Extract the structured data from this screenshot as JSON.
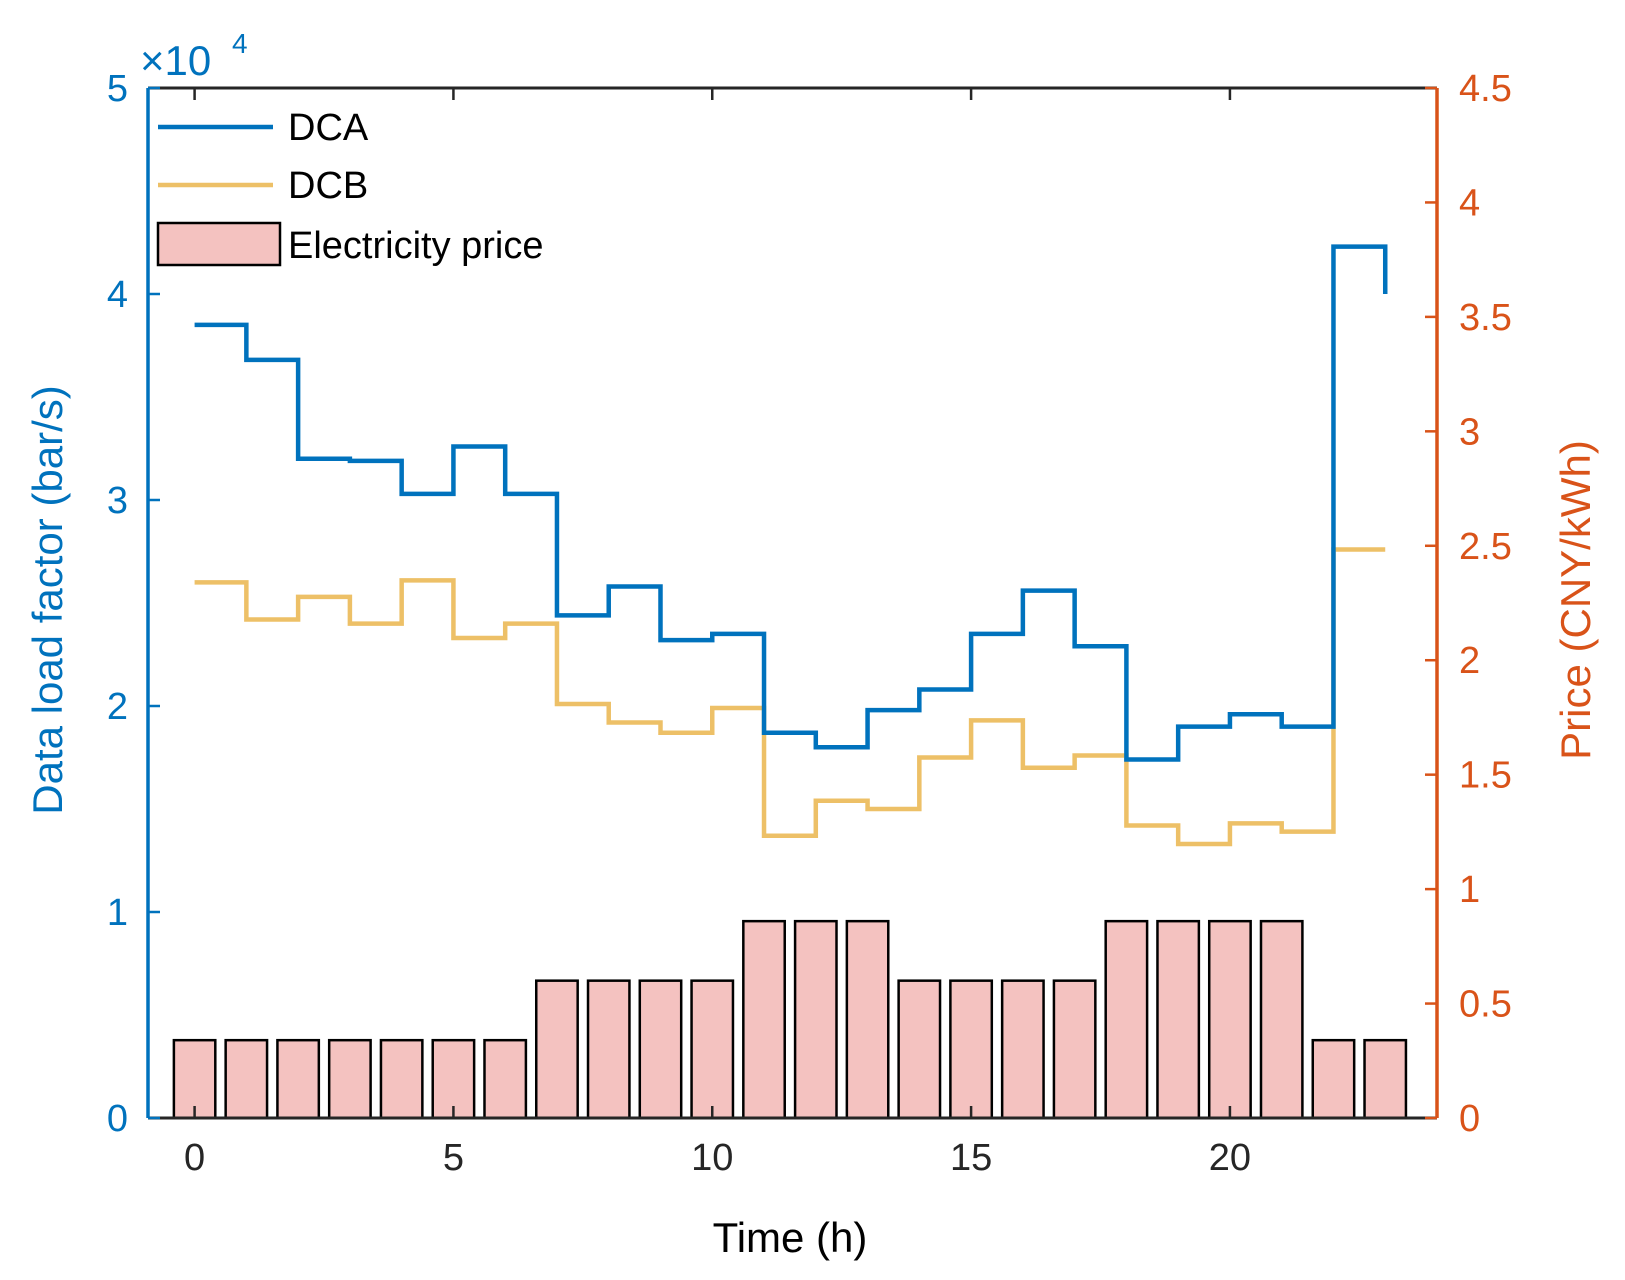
{
  "chart_data": {
    "type": "bar+line",
    "title": "",
    "xlabel": "Time (h)",
    "ylabel_left": "Data load factor (bar/s)",
    "ylabel_right": "Price (CNY/kWh)",
    "exponent_label": "×10",
    "exponent_power": "4",
    "x_ticks": [
      "0",
      "5",
      "10",
      "15",
      "20"
    ],
    "x_tick_values": [
      0,
      5,
      10,
      15,
      20
    ],
    "y_left_ticks": [
      "0",
      "1",
      "2",
      "3",
      "4",
      "5"
    ],
    "y_left_tick_values": [
      0,
      10000,
      20000,
      30000,
      40000,
      50000
    ],
    "y_right_ticks": [
      "0",
      "0.5",
      "1",
      "1.5",
      "2",
      "2.5",
      "3",
      "3.5",
      "4",
      "4.5"
    ],
    "y_right_tick_values": [
      0,
      0.5,
      1,
      1.5,
      2,
      2.5,
      3,
      3.5,
      4,
      4.5
    ],
    "xlim": [
      -0.9,
      24.0
    ],
    "ylim_left": [
      0,
      50000
    ],
    "ylim_right": [
      0,
      4.5
    ],
    "legend_position": "top-left",
    "colors": {
      "left_axis": "#0072BD",
      "right_axis": "#D95319",
      "dca": "#0072BD",
      "dcb": "#EDC067",
      "bar_fill": "#F4C2C0",
      "bar_edge": "#000000"
    },
    "x": [
      0,
      1,
      2,
      3,
      4,
      5,
      6,
      7,
      8,
      9,
      10,
      11,
      12,
      13,
      14,
      15,
      16,
      17,
      18,
      19,
      20,
      21,
      22,
      23
    ],
    "series": [
      {
        "name": "DCA",
        "type": "stairs",
        "axis": "left",
        "values": [
          38500,
          36800,
          32000,
          31900,
          30300,
          32600,
          30300,
          24400,
          25800,
          23200,
          23500,
          18700,
          18000,
          19800,
          20800,
          23500,
          25600,
          22900,
          17400,
          19000,
          19600,
          19000,
          42300,
          40000
        ]
      },
      {
        "name": "DCB",
        "type": "stairs",
        "axis": "left",
        "values": [
          26000,
          24200,
          25300,
          24000,
          26100,
          23300,
          24000,
          20100,
          19200,
          18700,
          19900,
          13700,
          15400,
          15000,
          17500,
          19300,
          17000,
          17600,
          14200,
          13300,
          14300,
          13900,
          27600,
          27600
        ]
      },
      {
        "name": "Electricity price",
        "type": "bar",
        "axis": "right",
        "values": [
          0.34,
          0.34,
          0.34,
          0.34,
          0.34,
          0.34,
          0.34,
          0.6,
          0.6,
          0.6,
          0.6,
          0.86,
          0.86,
          0.86,
          0.6,
          0.6,
          0.6,
          0.6,
          0.86,
          0.86,
          0.86,
          0.86,
          0.34,
          0.34
        ]
      }
    ]
  }
}
